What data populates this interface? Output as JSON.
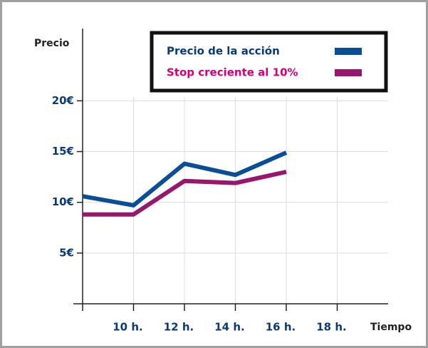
{
  "chart_data": {
    "type": "line",
    "x": [
      8,
      10,
      12,
      14,
      16
    ],
    "xlim": [
      8,
      20
    ],
    "xticks": [
      {
        "value": 10,
        "label": "10 h."
      },
      {
        "value": 12,
        "label": "12 h."
      },
      {
        "value": 14,
        "label": "14 h."
      },
      {
        "value": 16,
        "label": "16 h."
      },
      {
        "value": 18,
        "label": "18 h."
      }
    ],
    "ylim": [
      0,
      26
    ],
    "yticks": [
      {
        "value": 5,
        "label": "5€"
      },
      {
        "value": 10,
        "label": "10€"
      },
      {
        "value": 15,
        "label": "15€"
      },
      {
        "value": 20,
        "label": "20€"
      }
    ],
    "ylabel": "Precio",
    "xlabel": "Tiempo",
    "grid": true,
    "legend": "top-right",
    "series": [
      {
        "name": "Precio de la acción",
        "color": "#0a4f96",
        "values": [
          10.6,
          9.7,
          13.8,
          12.7,
          14.9
        ]
      },
      {
        "name": "Stop creciente al 10%",
        "color": "#97176e",
        "values": [
          8.8,
          8.8,
          12.1,
          11.9,
          13.0
        ]
      }
    ]
  }
}
